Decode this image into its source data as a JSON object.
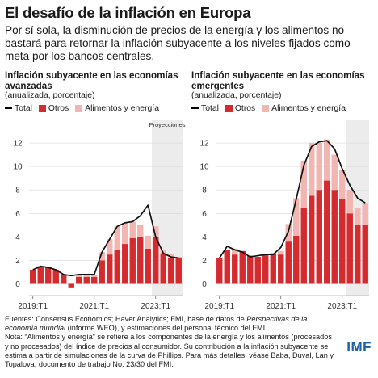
{
  "title": "El desafío de la inflación en Europa",
  "subtitle": "Por sí sola, la disminución de precios de la energía y los alimentos no bastará para retornar la inflación subyacente a los niveles fijados como meta por los bancos centrales.",
  "legend": {
    "total": "Total",
    "otros": "Otros",
    "alimentos": "Alimentos y energía"
  },
  "colors": {
    "otros": "#d52b2e",
    "alimentos": "#f2b5b1",
    "total": "#111111",
    "projection_shade": "#ececec",
    "gridline": "#d7d7d7"
  },
  "source": {
    "text_before_italic": "Fuentes: Consensus Economics; Haver Analytics; FMI, base de datos de ",
    "italic": "Perspectivas de la economía mundial",
    "text_after_italic": " (informe WEO), y estimaciones del personal técnico del FMI.",
    "note": "Nota: “Alimentos y energía” se refiere a los componentes de la energía y los alimentos (procesados y no procesados) del índice de precios al consumidor. Su contribución a la inflación subyacente se estima a partir de simulaciones de la curva de Phillips. Para más detalles, véase Baba, Duval, Lan y Topalova, documento de trabajo No. 23/30 del FMI."
  },
  "logo": "IMF",
  "chart_data": [
    {
      "type": "bar",
      "stacked": true,
      "title": "Inflación subyacente en las economías avanzadas",
      "unit": "(anualizada, porcentaje)",
      "xlabel": "",
      "ylabel": "",
      "ylim": [
        -1,
        14
      ],
      "yticks": [
        0,
        2,
        4,
        6,
        8,
        10,
        12
      ],
      "grid": true,
      "legend_position": "top",
      "x_tick_labels": [
        {
          "index": 0,
          "label": "2019:T1"
        },
        {
          "index": 8,
          "label": "2021:T1"
        },
        {
          "index": 16,
          "label": "2023:T1"
        }
      ],
      "projection_label": "Proyecciones",
      "projection_start_index": 16,
      "categories": [
        "2019:T1",
        "2019:T2",
        "2019:T3",
        "2019:T4",
        "2020:T1",
        "2020:T2",
        "2020:T3",
        "2020:T4",
        "2021:T1",
        "2021:T2",
        "2021:T3",
        "2021:T4",
        "2022:T1",
        "2022:T2",
        "2022:T3",
        "2022:T4",
        "2023:T1",
        "2023:T2",
        "2023:T3",
        "2023:T4"
      ],
      "series": [
        {
          "name": "Otros",
          "values": [
            1.2,
            1.5,
            1.4,
            1.2,
            0.8,
            -0.3,
            0.6,
            0.6,
            0.6,
            2.0,
            2.5,
            2.9,
            3.4,
            3.9,
            4.0,
            3.0,
            4.0,
            2.6,
            2.2,
            2.2
          ]
        },
        {
          "name": "Alimentos y energía",
          "values": [
            0.0,
            0.0,
            0.0,
            0.0,
            0.0,
            0.0,
            0.2,
            0.2,
            0.2,
            0.7,
            1.3,
            2.0,
            1.8,
            1.4,
            1.0,
            1.1,
            0.9,
            0.3,
            0.3,
            0.1
          ]
        }
      ],
      "total": [
        1.2,
        1.5,
        1.4,
        1.2,
        0.8,
        0.7,
        0.8,
        0.8,
        0.8,
        2.7,
        3.8,
        4.9,
        5.2,
        5.3,
        5.8,
        6.7,
        4.0,
        2.6,
        2.3,
        2.2
      ]
    },
    {
      "type": "bar",
      "stacked": true,
      "title": "Inflación subyacente en las economías emergentes",
      "unit": "(anualizada, porcentaje)",
      "xlabel": "",
      "ylabel": "",
      "ylim": [
        -1,
        14
      ],
      "yticks": [
        0,
        2,
        4,
        6,
        8,
        10,
        12
      ],
      "grid": true,
      "legend_position": "top",
      "x_tick_labels": [
        {
          "index": 0,
          "label": "2019:T1"
        },
        {
          "index": 8,
          "label": "2021:T1"
        },
        {
          "index": 16,
          "label": "2023:T1"
        }
      ],
      "projection_label": "",
      "projection_start_index": 17,
      "categories": [
        "2019:T1",
        "2019:T2",
        "2019:T3",
        "2019:T4",
        "2020:T1",
        "2020:T2",
        "2020:T3",
        "2020:T4",
        "2021:T1",
        "2021:T2",
        "2021:T3",
        "2021:T4",
        "2022:T1",
        "2022:T2",
        "2022:T3",
        "2022:T4",
        "2023:T1",
        "2023:T2",
        "2023:T3",
        "2023:T4"
      ],
      "series": [
        {
          "name": "Otros",
          "values": [
            2.2,
            2.9,
            2.5,
            2.8,
            2.4,
            2.3,
            2.5,
            2.6,
            2.5,
            3.6,
            4.1,
            6.5,
            7.5,
            8.0,
            8.8,
            8.0,
            7.2,
            6.0,
            5.0,
            5.0
          ]
        },
        {
          "name": "Alimentos y energía",
          "values": [
            0.0,
            0.0,
            0.5,
            0.0,
            0.0,
            0.0,
            0.0,
            0.0,
            0.3,
            1.5,
            3.2,
            4.0,
            4.5,
            4.0,
            3.5,
            3.0,
            2.5,
            2.0,
            1.5,
            1.9
          ]
        }
      ],
      "total": [
        2.2,
        3.2,
        2.9,
        2.7,
        2.3,
        2.4,
        2.5,
        2.5,
        3.1,
        4.5,
        7.2,
        10.1,
        11.7,
        12.1,
        12.2,
        11.5,
        9.8,
        8.4,
        7.3,
        6.9
      ]
    }
  ]
}
